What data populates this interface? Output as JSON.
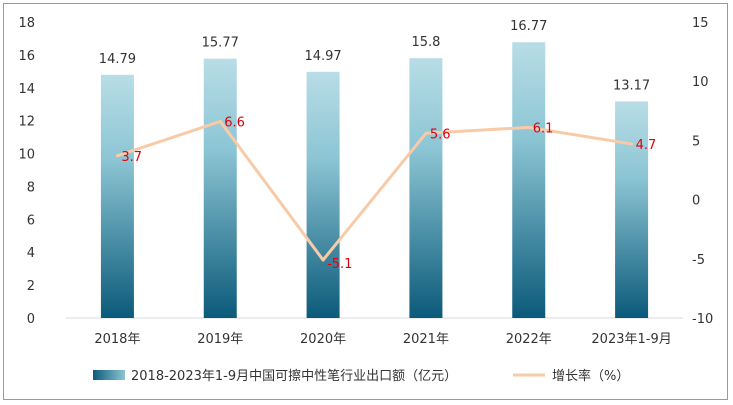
{
  "chart_data": {
    "type": "bar",
    "categories": [
      "2018年",
      "2019年",
      "2020年",
      "2021年",
      "2022年",
      "2023年1-9月"
    ],
    "series": [
      {
        "name": "2018-2023年1-9月中国可擦中性笔行业出口额（亿元）",
        "type": "bar",
        "axis": "left",
        "values": [
          14.79,
          15.77,
          14.97,
          15.8,
          16.77,
          13.17
        ],
        "labels": [
          "14.79",
          "15.77",
          "14.97",
          "15.8",
          "16.77",
          "13.17"
        ],
        "color_top": "#b8dde6",
        "color_bottom": "#0b5a7a"
      },
      {
        "name": "增长率（%）",
        "type": "line",
        "axis": "right",
        "values": [
          3.7,
          6.6,
          -5.1,
          5.6,
          6.1,
          4.7
        ],
        "labels": [
          "3.7",
          "6.6",
          "-5.1",
          "5.6",
          "6.1",
          "4.7"
        ],
        "color": "#f8cba8",
        "label_color": "#e0000f"
      }
    ],
    "y_left": {
      "min": 0,
      "max": 18,
      "ticks": [
        "0",
        "2",
        "4",
        "6",
        "8",
        "10",
        "12",
        "14",
        "16",
        "18"
      ]
    },
    "y_right": {
      "min": -10,
      "max": 15,
      "ticks": [
        "-10",
        "-5",
        "0",
        "5",
        "10",
        "15"
      ]
    },
    "grid": false,
    "legend_position": "bottom"
  }
}
